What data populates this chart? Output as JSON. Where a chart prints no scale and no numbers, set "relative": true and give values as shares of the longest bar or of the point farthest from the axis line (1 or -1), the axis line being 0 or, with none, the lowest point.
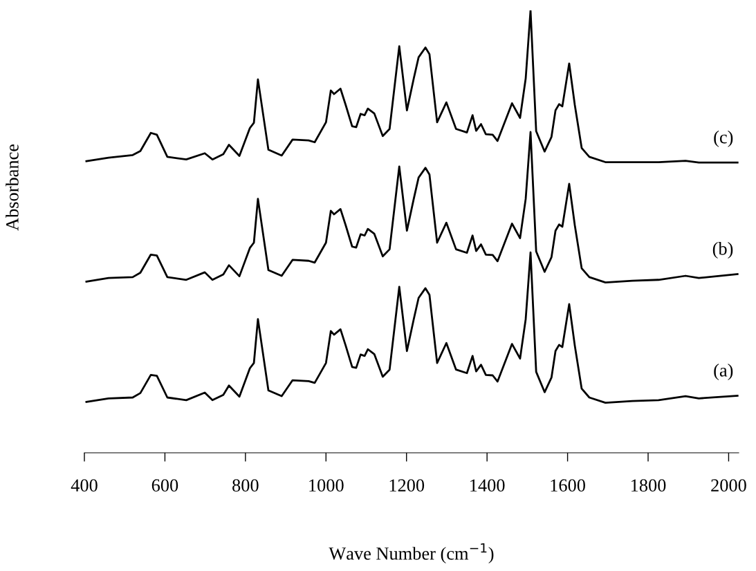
{
  "chart_data": {
    "type": "line",
    "relative": true,
    "xlabel": "Wave Number (cm$^{−1}$)",
    "ylabel": "Absorbance",
    "xlim": [
      400,
      2025
    ],
    "xticks": [
      400,
      600,
      800,
      1000,
      1200,
      1400,
      1600,
      1800,
      2000
    ],
    "tick_labels": "x",
    "grid": false,
    "legend": false,
    "marker": "none",
    "line_style": "solid",
    "x": [
      405,
      460,
      520,
      539,
      565,
      580,
      606,
      653,
      699,
      718,
      745,
      759,
      785,
      811,
      821,
      831,
      857,
      890,
      917,
      957,
      972,
      1000,
      1012,
      1020,
      1036,
      1049,
      1065,
      1075,
      1086,
      1096,
      1104,
      1120,
      1141,
      1158,
      1182,
      1201,
      1218,
      1230,
      1247,
      1257,
      1276,
      1299,
      1323,
      1350,
      1364,
      1373,
      1385,
      1397,
      1414,
      1426,
      1462,
      1482,
      1496,
      1508,
      1522,
      1543,
      1560,
      1570,
      1579,
      1587,
      1604,
      1618,
      1635,
      1654,
      1694,
      1761,
      1826,
      1893,
      1926,
      2022
    ],
    "series": [
      {
        "name": "(a)",
        "color": "#000000",
        "values": [
          0.115,
          0.123,
          0.125,
          0.135,
          0.176,
          0.174,
          0.125,
          0.119,
          0.136,
          0.119,
          0.131,
          0.152,
          0.127,
          0.191,
          0.203,
          0.302,
          0.141,
          0.128,
          0.164,
          0.162,
          0.158,
          0.203,
          0.275,
          0.267,
          0.279,
          0.242,
          0.194,
          0.192,
          0.222,
          0.219,
          0.234,
          0.223,
          0.172,
          0.188,
          0.375,
          0.23,
          0.302,
          0.35,
          0.372,
          0.357,
          0.203,
          0.248,
          0.188,
          0.18,
          0.219,
          0.184,
          0.199,
          0.176,
          0.175,
          0.161,
          0.246,
          0.213,
          0.302,
          0.453,
          0.183,
          0.137,
          0.17,
          0.23,
          0.244,
          0.239,
          0.336,
          0.242,
          0.145,
          0.125,
          0.113,
          0.117,
          0.119,
          0.128,
          0.123,
          0.129
        ]
      },
      {
        "name": "(b)",
        "color": "#000000",
        "values": [
          0.387,
          0.395,
          0.397,
          0.407,
          0.448,
          0.446,
          0.397,
          0.391,
          0.408,
          0.391,
          0.403,
          0.424,
          0.399,
          0.463,
          0.475,
          0.574,
          0.413,
          0.4,
          0.436,
          0.434,
          0.43,
          0.475,
          0.547,
          0.539,
          0.551,
          0.514,
          0.466,
          0.464,
          0.494,
          0.491,
          0.506,
          0.495,
          0.444,
          0.46,
          0.647,
          0.502,
          0.574,
          0.622,
          0.644,
          0.629,
          0.475,
          0.52,
          0.46,
          0.452,
          0.491,
          0.456,
          0.471,
          0.448,
          0.447,
          0.433,
          0.518,
          0.485,
          0.574,
          0.725,
          0.455,
          0.409,
          0.442,
          0.502,
          0.516,
          0.511,
          0.608,
          0.514,
          0.417,
          0.397,
          0.385,
          0.389,
          0.391,
          0.4,
          0.395,
          0.404
        ]
      },
      {
        "name": "(c)",
        "color": "#000000",
        "values": [
          0.659,
          0.667,
          0.673,
          0.682,
          0.723,
          0.719,
          0.669,
          0.663,
          0.677,
          0.663,
          0.675,
          0.696,
          0.671,
          0.734,
          0.746,
          0.844,
          0.685,
          0.672,
          0.708,
          0.706,
          0.702,
          0.747,
          0.819,
          0.811,
          0.823,
          0.786,
          0.738,
          0.736,
          0.766,
          0.763,
          0.778,
          0.767,
          0.716,
          0.732,
          0.919,
          0.774,
          0.846,
          0.894,
          0.916,
          0.901,
          0.747,
          0.792,
          0.732,
          0.724,
          0.763,
          0.728,
          0.743,
          0.72,
          0.719,
          0.705,
          0.79,
          0.757,
          0.846,
          1.0,
          0.727,
          0.681,
          0.714,
          0.774,
          0.788,
          0.783,
          0.88,
          0.786,
          0.689,
          0.669,
          0.657,
          0.657,
          0.657,
          0.66,
          0.656,
          0.656
        ]
      }
    ]
  }
}
